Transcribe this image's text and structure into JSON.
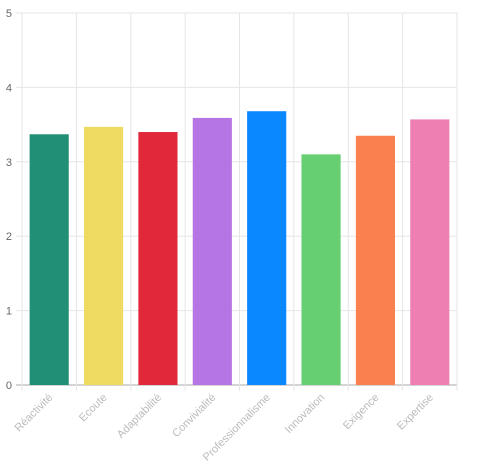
{
  "chart_data": {
    "type": "bar",
    "categories": [
      "Réactivité",
      "Ecoute",
      "Adaptabilité",
      "Convivialité",
      "Professionnalisme",
      "Innovation",
      "Exigence",
      "Expertise"
    ],
    "values": [
      3.37,
      3.47,
      3.4,
      3.59,
      3.68,
      3.1,
      3.35,
      3.57
    ],
    "colors": [
      "#218f76",
      "#f0db62",
      "#e0283a",
      "#b675e5",
      "#0a88ff",
      "#66cf72",
      "#fa8050",
      "#ee7fb3"
    ],
    "ylim": [
      0,
      5
    ],
    "yticks": [
      "0",
      "1",
      "2",
      "3",
      "4",
      "5"
    ],
    "grid": true,
    "legend": "none",
    "title": "",
    "xlabel": "",
    "ylabel": ""
  }
}
